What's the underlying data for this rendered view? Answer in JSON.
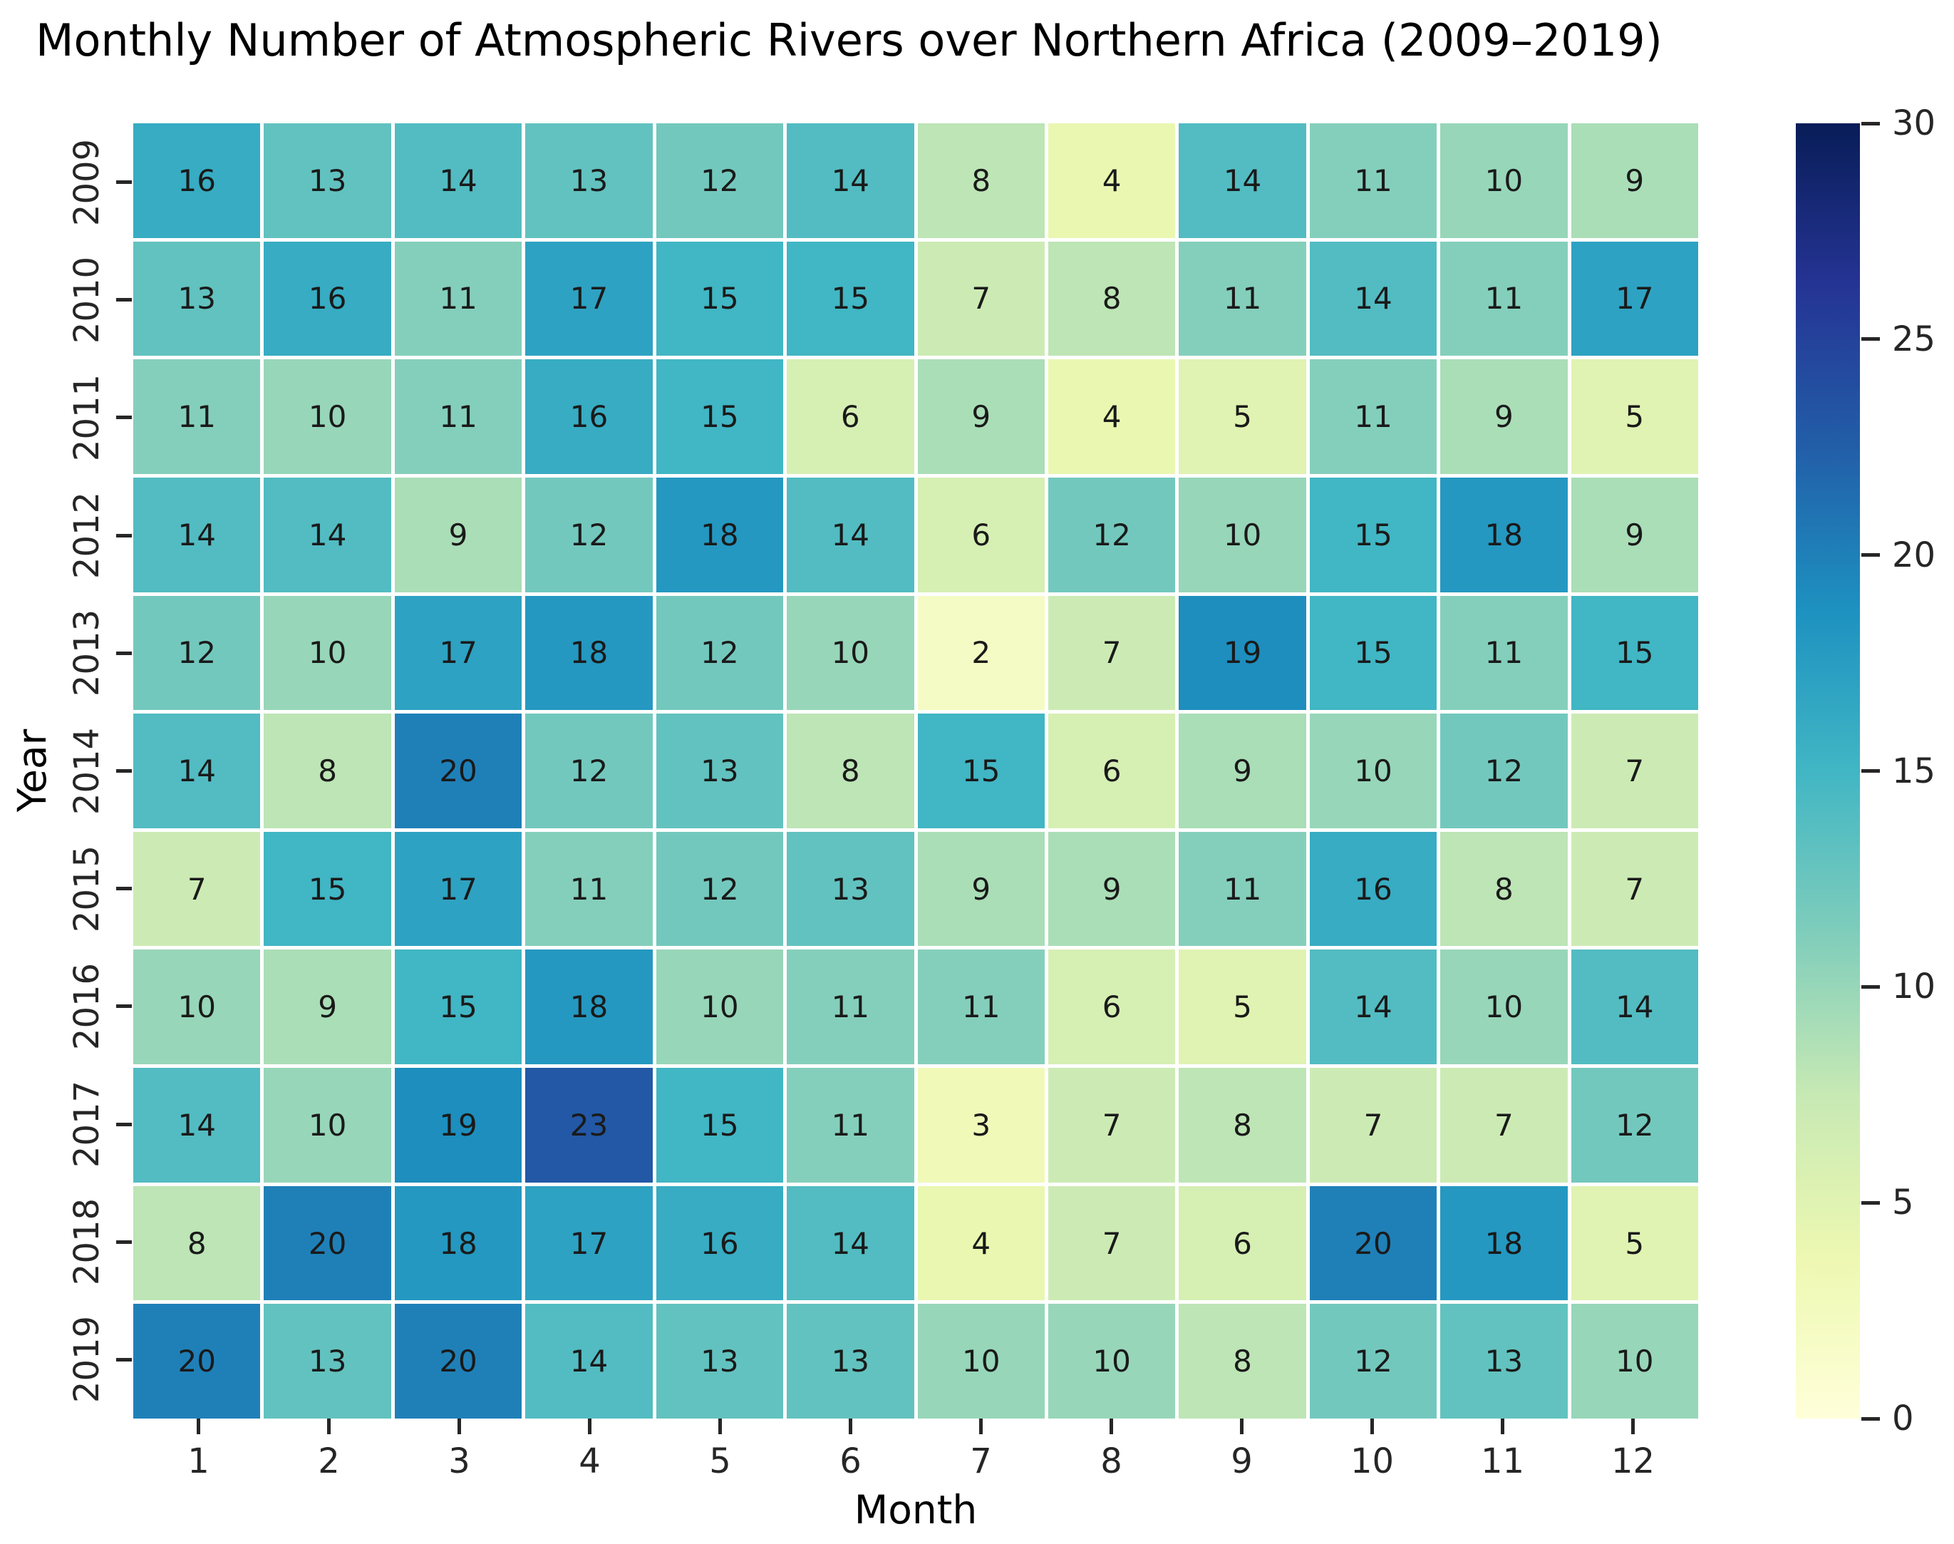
{
  "chart_data": {
    "type": "heatmap",
    "title": "Monthly Number of Atmospheric Rivers over Northern Africa (2009–2019)",
    "xlabel": "Month",
    "ylabel": "Year",
    "x_categories": [
      "1",
      "2",
      "3",
      "4",
      "5",
      "6",
      "7",
      "8",
      "9",
      "10",
      "11",
      "12"
    ],
    "y_categories": [
      "2009",
      "2010",
      "2011",
      "2012",
      "2013",
      "2014",
      "2015",
      "2016",
      "2017",
      "2018",
      "2019"
    ],
    "values": [
      [
        16,
        13,
        14,
        13,
        12,
        14,
        8,
        4,
        14,
        11,
        10,
        9
      ],
      [
        13,
        16,
        11,
        17,
        15,
        15,
        7,
        8,
        11,
        14,
        11,
        17
      ],
      [
        11,
        10,
        11,
        16,
        15,
        6,
        9,
        4,
        5,
        11,
        9,
        5
      ],
      [
        14,
        14,
        9,
        12,
        18,
        14,
        6,
        12,
        10,
        15,
        18,
        9
      ],
      [
        12,
        10,
        17,
        18,
        12,
        10,
        2,
        7,
        19,
        15,
        11,
        15
      ],
      [
        14,
        8,
        20,
        12,
        13,
        8,
        15,
        6,
        9,
        10,
        12,
        7
      ],
      [
        7,
        15,
        17,
        11,
        12,
        13,
        9,
        9,
        11,
        16,
        8,
        7
      ],
      [
        10,
        9,
        15,
        18,
        10,
        11,
        11,
        6,
        5,
        14,
        10,
        14
      ],
      [
        14,
        10,
        19,
        23,
        15,
        11,
        3,
        7,
        8,
        7,
        7,
        12
      ],
      [
        8,
        20,
        18,
        17,
        16,
        14,
        4,
        7,
        6,
        20,
        18,
        5
      ],
      [
        20,
        13,
        20,
        14,
        13,
        13,
        10,
        10,
        8,
        12,
        13,
        10
      ]
    ],
    "vmin": 0,
    "vmax": 30,
    "colorbar_ticks": [
      0,
      5,
      10,
      15,
      20,
      25,
      30
    ],
    "legend_position": "right",
    "grid": "white-cell-borders",
    "colormap": {
      "name": "YlGnBu",
      "stops": [
        [
          0.0,
          "#ffffd9"
        ],
        [
          0.125,
          "#edf8b1"
        ],
        [
          0.25,
          "#c7e9b4"
        ],
        [
          0.375,
          "#7fcdbb"
        ],
        [
          0.5,
          "#41b6c4"
        ],
        [
          0.625,
          "#1d91c0"
        ],
        [
          0.75,
          "#225ea8"
        ],
        [
          0.875,
          "#253494"
        ],
        [
          1.0,
          "#081d58"
        ]
      ]
    },
    "colors": {
      "cell_text": "#1a1a1a",
      "tick": "#262626",
      "cell_border": "#ffffff",
      "background": "#ffffff"
    }
  }
}
